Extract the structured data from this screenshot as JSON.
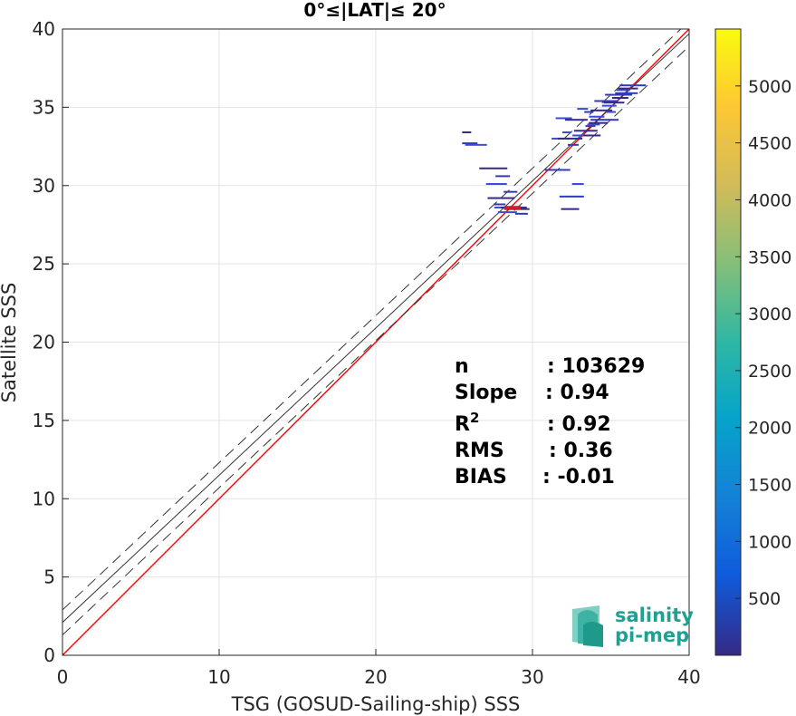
{
  "chart_data": {
    "type": "scatter",
    "title": "0°≤|LAT|≤ 20°",
    "xlabel": "TSG (GOSUD-Sailing-ship) SSS",
    "ylabel": "Satellite SSS",
    "xlim": [
      0,
      40
    ],
    "ylim": [
      0,
      40
    ],
    "xticks": [
      0,
      10,
      20,
      30,
      40
    ],
    "yticks": [
      0,
      5,
      10,
      15,
      20,
      25,
      30,
      35,
      40
    ],
    "grid": true,
    "colorbar": {
      "min": 0,
      "max": 5500,
      "ticks": [
        500,
        1000,
        1500,
        2000,
        2500,
        3000,
        3500,
        4000,
        4500,
        5000
      ],
      "colormap": "parula"
    },
    "lines": [
      {
        "name": "identity",
        "style": "solid",
        "color": "#ff0000",
        "slope": 1,
        "intercept": 0
      },
      {
        "name": "fit",
        "style": "solid",
        "color": "#333333",
        "slope": 0.94,
        "intercept": 2.1
      },
      {
        "name": "fit-upper",
        "style": "dashed",
        "color": "#333333",
        "slope": 0.94,
        "intercept": 2.9
      },
      {
        "name": "fit-lower",
        "style": "dashed",
        "color": "#333333",
        "slope": 0.94,
        "intercept": 1.3
      }
    ],
    "points": [
      {
        "x": 25.8,
        "y": 33.4
      },
      {
        "x": 26.0,
        "y": 32.7
      },
      {
        "x": 26.4,
        "y": 32.6
      },
      {
        "x": 27.5,
        "y": 31.1
      },
      {
        "x": 28.1,
        "y": 30.6
      },
      {
        "x": 27.7,
        "y": 30.1
      },
      {
        "x": 28.0,
        "y": 29.2
      },
      {
        "x": 28.6,
        "y": 29.6
      },
      {
        "x": 28.2,
        "y": 28.6
      },
      {
        "x": 28.8,
        "y": 28.6
      },
      {
        "x": 29.3,
        "y": 28.2
      },
      {
        "x": 28.4,
        "y": 28.3
      },
      {
        "x": 29.0,
        "y": 28.5
      },
      {
        "x": 27.9,
        "y": 28.8
      },
      {
        "x": 31.8,
        "y": 33.0
      },
      {
        "x": 32.4,
        "y": 33.0
      },
      {
        "x": 32.6,
        "y": 32.6
      },
      {
        "x": 33.1,
        "y": 33.2
      },
      {
        "x": 33.4,
        "y": 33.5
      },
      {
        "x": 33.7,
        "y": 33.8
      },
      {
        "x": 32.0,
        "y": 34.3
      },
      {
        "x": 32.8,
        "y": 34.2
      },
      {
        "x": 33.6,
        "y": 34.7
      },
      {
        "x": 34.1,
        "y": 34.4
      },
      {
        "x": 34.4,
        "y": 34.8
      },
      {
        "x": 34.6,
        "y": 34.2
      },
      {
        "x": 34.9,
        "y": 35.1
      },
      {
        "x": 35.2,
        "y": 35.3
      },
      {
        "x": 35.5,
        "y": 35.8
      },
      {
        "x": 35.8,
        "y": 36.1
      },
      {
        "x": 36.1,
        "y": 36.2
      },
      {
        "x": 36.4,
        "y": 36.4
      },
      {
        "x": 33.9,
        "y": 33.9
      },
      {
        "x": 34.2,
        "y": 34.0
      },
      {
        "x": 31.6,
        "y": 31.0
      },
      {
        "x": 32.9,
        "y": 30.1
      },
      {
        "x": 32.4,
        "y": 28.5
      },
      {
        "x": 32.5,
        "y": 29.3
      },
      {
        "x": 33.2,
        "y": 34.9
      },
      {
        "x": 33.8,
        "y": 33.2
      },
      {
        "x": 34.7,
        "y": 35.4
      },
      {
        "x": 35.0,
        "y": 34.7
      },
      {
        "x": 35.6,
        "y": 35.6
      },
      {
        "x": 36.0,
        "y": 35.9
      },
      {
        "x": 32.2,
        "y": 33.4
      }
    ],
    "stats": [
      {
        "label": "n",
        "value": ": 103629"
      },
      {
        "label": "Slope",
        "value": ": 0.94"
      },
      {
        "label": "R",
        "sup": "2",
        "value": ": 0.92"
      },
      {
        "label": "RMS",
        "value": ": 0.36"
      },
      {
        "label": "BIAS",
        "value": ": -0.01"
      }
    ]
  },
  "logo": {
    "line1": "salinity",
    "line2": "pi-mep",
    "color": "#1fa090"
  }
}
